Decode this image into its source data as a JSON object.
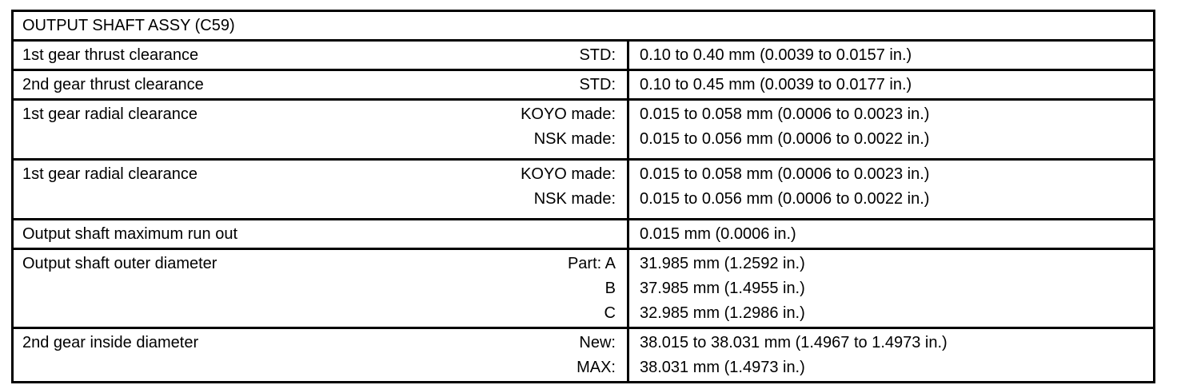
{
  "document": {
    "title": "OUTPUT SHAFT ASSY (C59)",
    "rows": [
      {
        "label": "1st gear thrust clearance",
        "entries": [
          {
            "condition": "STD:",
            "value": "0.10 to 0.40 mm (0.0039 to 0.0157 in.)"
          }
        ]
      },
      {
        "label": "2nd gear thrust clearance",
        "entries": [
          {
            "condition": "STD:",
            "value": "0.10 to 0.45 mm (0.0039 to 0.0177 in.)"
          }
        ]
      },
      {
        "label": "1st gear radial clearance",
        "entries": [
          {
            "condition": "KOYO made:",
            "value": "0.015 to 0.058 mm (0.0006 to 0.0023 in.)"
          },
          {
            "condition": "NSK made:",
            "value": "0.015 to 0.056 mm (0.0006 to 0.0022 in.)"
          }
        ]
      },
      {
        "label": "1st gear radial clearance",
        "entries": [
          {
            "condition": "KOYO made:",
            "value": "0.015 to 0.058 mm (0.0006 to 0.0023 in.)"
          },
          {
            "condition": "NSK made:",
            "value": "0.015 to 0.056 mm (0.0006 to 0.0022 in.)"
          }
        ]
      },
      {
        "label": "Output shaft maximum run out",
        "entries": [
          {
            "condition": "",
            "value": "0.015 mm (0.0006 in.)"
          }
        ]
      },
      {
        "label": "Output shaft outer diameter",
        "entries": [
          {
            "condition": "Part: A",
            "value": "31.985 mm (1.2592 in.)"
          },
          {
            "condition": "B",
            "value": "37.985 mm (1.4955 in.)"
          },
          {
            "condition": "C",
            "value": "32.985 mm (1.2986 in.)"
          }
        ]
      },
      {
        "label": "2nd gear inside diameter",
        "entries": [
          {
            "condition": "New:",
            "value": "38.015 to 38.031 mm (1.4967 to 1.4973 in.)"
          },
          {
            "condition": "MAX:",
            "value": "38.031 mm (1.4973 in.)"
          }
        ]
      }
    ]
  }
}
